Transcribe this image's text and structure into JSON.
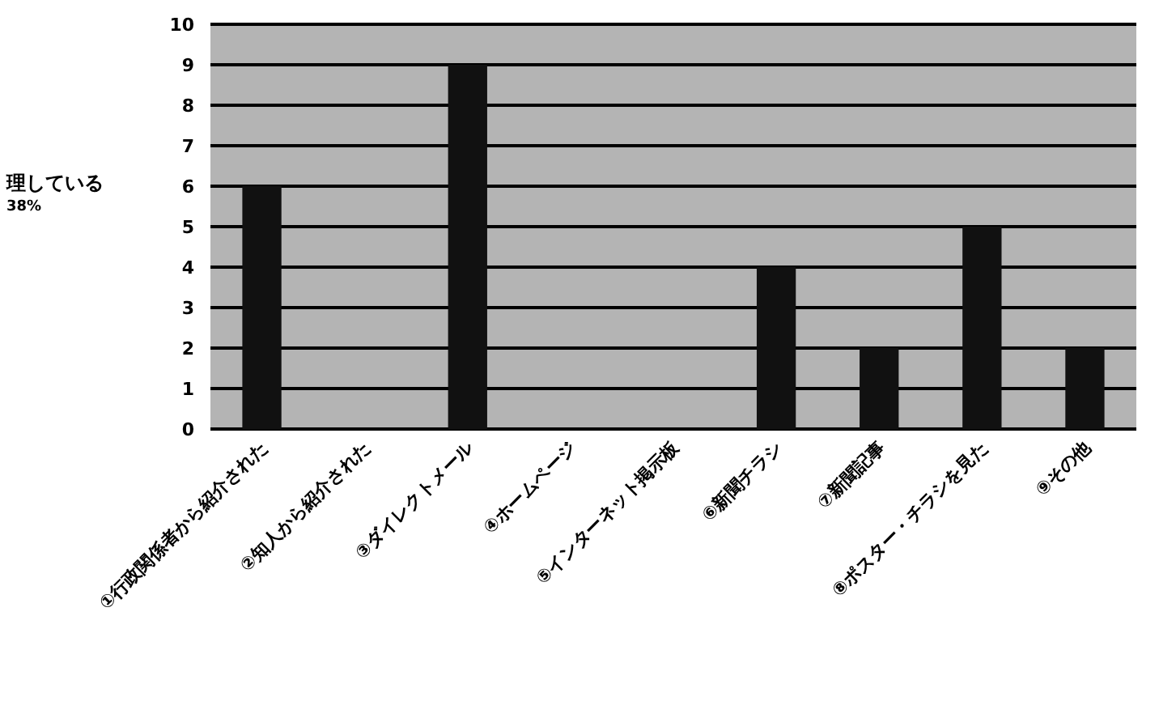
{
  "chart_data": {
    "type": "bar",
    "categories": [
      "①行政関係者から紹介された",
      "②知人から紹介された",
      "③ダイレクトメール",
      "④ホームページ",
      "⑤インターネット掲示板",
      "⑥新聞チラシ",
      "⑦新聞記事",
      "⑧ポスター・チラシを見た",
      "⑨その他"
    ],
    "values": [
      6,
      0,
      9,
      0,
      0,
      4,
      2,
      5,
      2
    ],
    "color": "#111111",
    "ylim": [
      0,
      10
    ],
    "yticks": [
      0,
      1,
      2,
      3,
      4,
      5,
      6,
      7,
      8,
      9,
      10
    ],
    "grid": "y",
    "annotations": [
      "理している",
      "38%"
    ]
  }
}
